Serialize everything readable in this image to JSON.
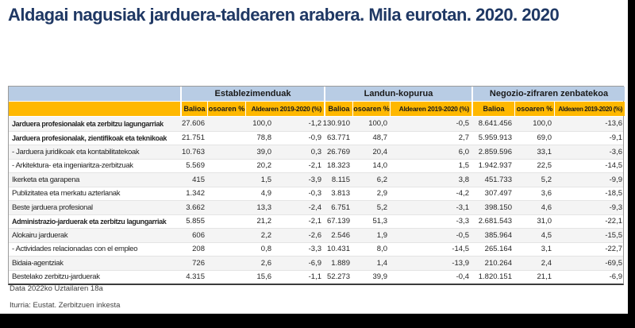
{
  "title": "Aldagai nagusiak jarduera-taldearen arabera. Mila eurotan. 2020. 2020",
  "chart_data": {
    "type": "table",
    "title": "Aldagai nagusiak jarduera-taldearen arabera. Mila eurotan. 2020. 2020",
    "column_groups": [
      {
        "label": "Establezimenduak"
      },
      {
        "label": "Landun-kopurua"
      },
      {
        "label": "Negozio-zifraren zenbatekoa"
      }
    ],
    "subcolumns": [
      "Balioa",
      "osoaren %",
      "Aldearen 2019-2020 (%)"
    ],
    "rows": [
      {
        "label": "Jarduera profesionalak eta zerbitzu lagungarriak",
        "bold": true,
        "values": [
          "27.606",
          "100,0",
          "-1,2",
          "130.910",
          "100,0",
          "-0,5",
          "8.641.456",
          "100,0",
          "-13,6"
        ]
      },
      {
        "label": "Jarduera profesionalak, zientifikoak eta teknikoak",
        "bold": true,
        "values": [
          "21.751",
          "78,8",
          "-0,9",
          "63.771",
          "48,7",
          "2,7",
          "5.959.913",
          "69,0",
          "-9,1"
        ]
      },
      {
        "label": "- Jarduera juridikoak eta kontabilitatekoak",
        "bold": false,
        "values": [
          "10.763",
          "39,0",
          "0,3",
          "26.769",
          "20,4",
          "6,0",
          "2.859.596",
          "33,1",
          "-3,6"
        ]
      },
      {
        "label": "- Arkitektura- eta ingeniaritza-zerbitzuak",
        "bold": false,
        "values": [
          "5.569",
          "20,2",
          "-2,1",
          "18.323",
          "14,0",
          "1,5",
          "1.942.937",
          "22,5",
          "-14,5"
        ]
      },
      {
        "label": "Ikerketa eta garapena",
        "bold": false,
        "values": [
          "415",
          "1,5",
          "-3,9",
          "8.115",
          "6,2",
          "3,8",
          "451.733",
          "5,2",
          "-9,9"
        ]
      },
      {
        "label": "Publizitatea eta merkatu azterlanak",
        "bold": false,
        "values": [
          "1.342",
          "4,9",
          "-0,3",
          "3.813",
          "2,9",
          "-4,2",
          "307.497",
          "3,6",
          "-18,5"
        ]
      },
      {
        "label": "Beste jarduera profesional",
        "bold": false,
        "values": [
          "3.662",
          "13,3",
          "-2,4",
          "6.751",
          "5,2",
          "-3,1",
          "398.150",
          "4,6",
          "-9,3"
        ]
      },
      {
        "label": "Administrazio-jarduerak eta zerbitzu lagungarriak",
        "bold": true,
        "values": [
          "5.855",
          "21,2",
          "-2,1",
          "67.139",
          "51,3",
          "-3,3",
          "2.681.543",
          "31,0",
          "-22,1"
        ]
      },
      {
        "label": "Alokairu jarduerak",
        "bold": false,
        "values": [
          "606",
          "2,2",
          "-2,6",
          "2.546",
          "1,9",
          "-0,5",
          "385.964",
          "4,5",
          "-15,5"
        ]
      },
      {
        "label": "- Actividades relacionadas con el empleo",
        "bold": false,
        "values": [
          "208",
          "0,8",
          "-3,3",
          "10.431",
          "8,0",
          "-14,5",
          "265.164",
          "3,1",
          "-22,7"
        ]
      },
      {
        "label": "Bidaia-agentziak",
        "bold": false,
        "values": [
          "726",
          "2,6",
          "-6,9",
          "1.889",
          "1,4",
          "-13,9",
          "210.264",
          "2,4",
          "-69,5"
        ]
      },
      {
        "label": "Bestelako zerbitzu-jarduerak",
        "bold": false,
        "values": [
          "4.315",
          "15,6",
          "-1,1",
          "52.273",
          "39,9",
          "-0,4",
          "1.820.151",
          "21,1",
          "-6,9"
        ]
      }
    ]
  },
  "footer": {
    "date_note": "Data 2022ko Uztailaren 18a",
    "source_note": "Iturria: Eustat. Zerbitzuen inkesta"
  },
  "colors": {
    "title": "#1F3864",
    "header_blue": "#B8CCE4",
    "header_orange": "#FFB800"
  }
}
